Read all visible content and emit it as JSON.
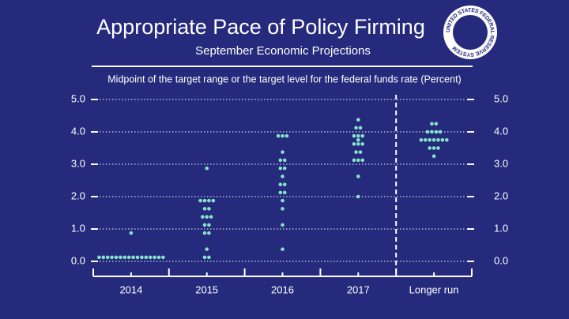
{
  "chart_data": {
    "type": "dot",
    "title": "Appropriate Pace of Policy Firming",
    "subtitle": "September Economic Projections",
    "y_label": "Midpoint of the target range or the target level for the federal funds rate (Percent)",
    "seal": "UNITED STATES FEDERAL RESERVE SYSTEM",
    "categories": [
      "2014",
      "2015",
      "2016",
      "2017",
      "Longer run"
    ],
    "color": "#86e3c9",
    "grid": true,
    "ylim": [
      0,
      5
    ],
    "yticks": [
      {
        "value": 0,
        "label": "0.0"
      },
      {
        "value": 1,
        "label": "1.0"
      },
      {
        "value": 2,
        "label": "2.0"
      },
      {
        "value": 3,
        "label": "3.0"
      },
      {
        "value": 4,
        "label": "4.0"
      },
      {
        "value": 5,
        "label": "5.0"
      }
    ],
    "dots": [
      {
        "levels": [
          0.125,
          0.875
        ],
        "counts": [
          16,
          1
        ]
      },
      {
        "levels": [
          0.125,
          0.375,
          0.875,
          1.125,
          1.375,
          1.625,
          1.875,
          2.875
        ],
        "counts": [
          2,
          1,
          2,
          2,
          3,
          2,
          4,
          1
        ]
      },
      {
        "levels": [
          0.375,
          1.125,
          1.625,
          1.875,
          2.125,
          2.375,
          2.625,
          2.875,
          3.125,
          3.375,
          3.875
        ],
        "counts": [
          1,
          1,
          1,
          1,
          2,
          2,
          1,
          2,
          2,
          1,
          3
        ]
      },
      {
        "levels": [
          2.0,
          2.625,
          3.125,
          3.375,
          3.625,
          3.75,
          3.875,
          4.125,
          4.375
        ],
        "counts": [
          1,
          1,
          3,
          2,
          3,
          1,
          3,
          2,
          1
        ]
      },
      {
        "levels": [
          3.25,
          3.5,
          3.75,
          4.0,
          4.25
        ],
        "counts": [
          1,
          3,
          7,
          4,
          2
        ]
      }
    ]
  }
}
